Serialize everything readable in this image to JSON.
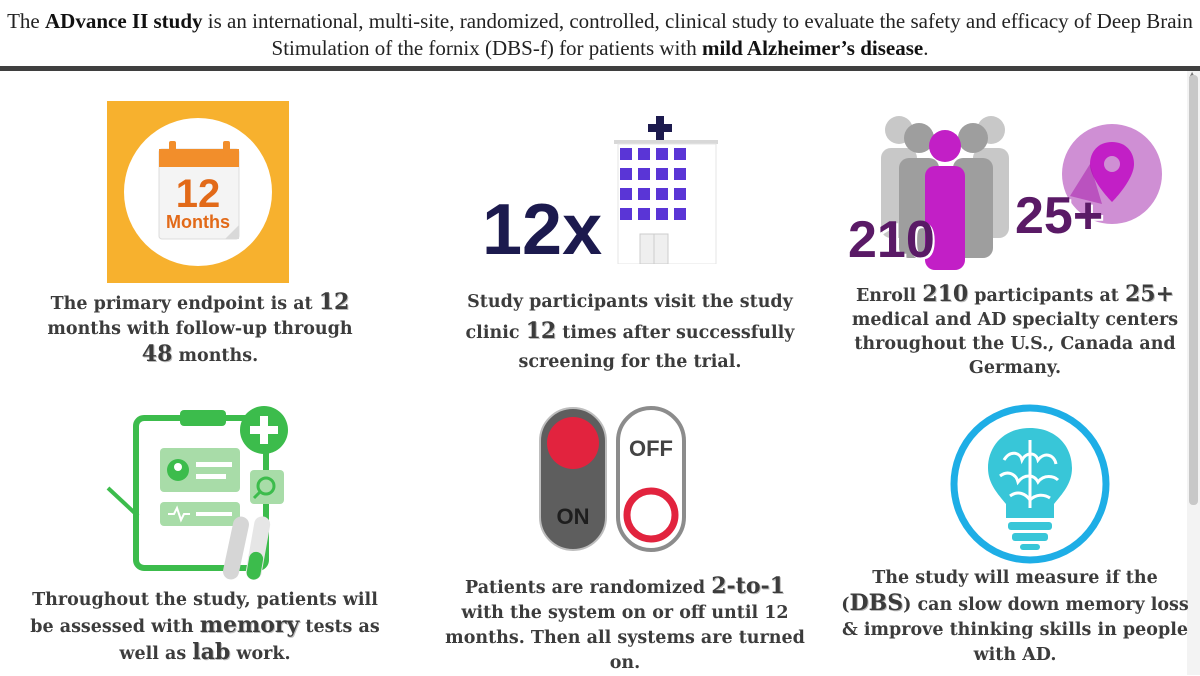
{
  "header": {
    "part1": "The ",
    "bold1": "ADvance II study",
    "part2": " is an international, multi-site, randomized, controlled, clinical study to evaluate the safety and efficacy of Deep Brain Stimulation of the fornix (DBS-f) for patients with ",
    "bold2": "mild Alzheimer’s disease",
    "part3": "."
  },
  "panels": {
    "p1": {
      "icon_text_num": "12",
      "icon_text_unit": "Months",
      "cap_a": "The primary endpoint is at ",
      "num_a": "12",
      "cap_b": " months with follow-up through ",
      "num_b": "48",
      "cap_c": " months."
    },
    "p2": {
      "big_text": "12x",
      "cap_a": "Study participants visit the study clinic ",
      "num_a": "12",
      "cap_b": " times after successfully screening for the trial."
    },
    "p3": {
      "big_a": "210",
      "big_b": "25+",
      "cap_a": "Enroll ",
      "num_a": "210",
      "cap_b": " participants at ",
      "num_b": "25+",
      "cap_c": " medical and AD specialty centers throughout the U.S., Canada and Germany."
    },
    "p4": {
      "cap_a": "Throughout the study, patients will be assessed with ",
      "num_a": "memory",
      "cap_b": " tests as well as ",
      "num_b": "lab",
      "cap_c": " work."
    },
    "p5": {
      "on_label": "ON",
      "off_label": "OFF",
      "cap_a": "Patients are randomized ",
      "num_a": "2-to-1",
      "cap_b": " with the system on or off until 12 months. Then all systems are turned on."
    },
    "p6": {
      "cap_a": "The study will measure if the (",
      "num_a": "DBS",
      "cap_b": ") can slow down memory loss & improve thinking skills in people with AD."
    }
  },
  "icons": [
    "calendar-icon",
    "hospital-icon",
    "people-icon",
    "location-pin-icon",
    "clipboard-icon",
    "test-tubes-icon",
    "on-off-switch-icon",
    "brain-lightbulb-icon"
  ],
  "colors": {
    "orange": "#f5a623",
    "navy": "#1c1a4e",
    "purple": "#5a1a66",
    "magenta": "#c21fc6",
    "green": "#3cbc4c",
    "red": "#e2233e",
    "cyan": "#1eaee6"
  }
}
